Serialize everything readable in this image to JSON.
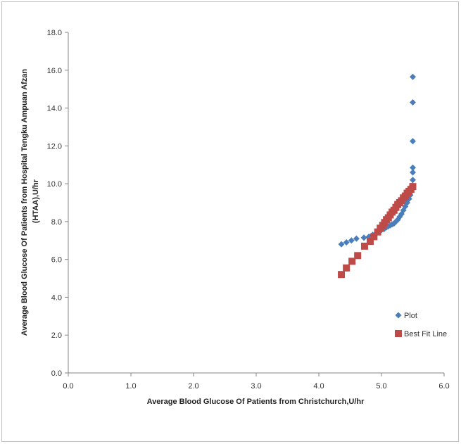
{
  "chart_data": {
    "type": "scatter",
    "xlabel": "Average Blood Glucose Of Patients from Christchurch,U/hr",
    "ylabel": "Average Blood Glucose Of Patients from Hospital Tengku Ampuan Afzan (HTAA),U/hr",
    "xlim": [
      0,
      6
    ],
    "ylim": [
      0,
      18
    ],
    "x_ticks": [
      "0.0",
      "1.0",
      "2.0",
      "3.0",
      "4.0",
      "5.0",
      "6.0"
    ],
    "y_ticks": [
      "0.0",
      "2.0",
      "4.0",
      "6.0",
      "8.0",
      "10.0",
      "12.0",
      "14.0",
      "16.0",
      "18.0"
    ],
    "grid": false,
    "legend_position": "right",
    "series": [
      {
        "name": "Plot",
        "color": "#4a7ebb",
        "marker": "diamond",
        "points": [
          [
            4.36,
            6.8
          ],
          [
            4.44,
            6.9
          ],
          [
            4.52,
            7.0
          ],
          [
            4.6,
            7.1
          ],
          [
            4.72,
            7.15
          ],
          [
            4.8,
            7.2
          ],
          [
            4.86,
            7.3
          ],
          [
            4.92,
            7.4
          ],
          [
            4.96,
            7.5
          ],
          [
            5.0,
            7.55
          ],
          [
            5.04,
            7.6
          ],
          [
            5.08,
            7.7
          ],
          [
            5.11,
            7.75
          ],
          [
            5.14,
            7.8
          ],
          [
            5.17,
            7.85
          ],
          [
            5.2,
            7.9
          ],
          [
            5.23,
            8.0
          ],
          [
            5.26,
            8.1
          ],
          [
            5.29,
            8.25
          ],
          [
            5.32,
            8.4
          ],
          [
            5.35,
            8.6
          ],
          [
            5.38,
            8.8
          ],
          [
            5.41,
            9.0
          ],
          [
            5.44,
            9.2
          ],
          [
            5.46,
            9.4
          ],
          [
            5.48,
            9.7
          ],
          [
            5.49,
            9.9
          ],
          [
            5.5,
            10.2
          ],
          [
            5.5,
            10.6
          ],
          [
            5.5,
            10.85
          ],
          [
            5.5,
            12.25
          ],
          [
            5.5,
            14.3
          ],
          [
            5.5,
            15.65
          ]
        ]
      },
      {
        "name": "Best Fit Line",
        "color": "#be4b48",
        "marker": "square",
        "points": [
          [
            4.36,
            5.2
          ],
          [
            4.44,
            5.55
          ],
          [
            4.53,
            5.9
          ],
          [
            4.62,
            6.2
          ],
          [
            4.73,
            6.7
          ],
          [
            4.82,
            6.95
          ],
          [
            4.88,
            7.2
          ],
          [
            4.94,
            7.45
          ],
          [
            4.98,
            7.65
          ],
          [
            5.02,
            7.8
          ],
          [
            5.05,
            7.95
          ],
          [
            5.08,
            8.1
          ],
          [
            5.11,
            8.2
          ],
          [
            5.14,
            8.35
          ],
          [
            5.17,
            8.5
          ],
          [
            5.2,
            8.6
          ],
          [
            5.23,
            8.75
          ],
          [
            5.26,
            8.9
          ],
          [
            5.29,
            9.0
          ],
          [
            5.32,
            9.1
          ],
          [
            5.35,
            9.25
          ],
          [
            5.38,
            9.35
          ],
          [
            5.41,
            9.5
          ],
          [
            5.44,
            9.6
          ],
          [
            5.47,
            9.7
          ],
          [
            5.5,
            9.85
          ]
        ]
      }
    ]
  }
}
